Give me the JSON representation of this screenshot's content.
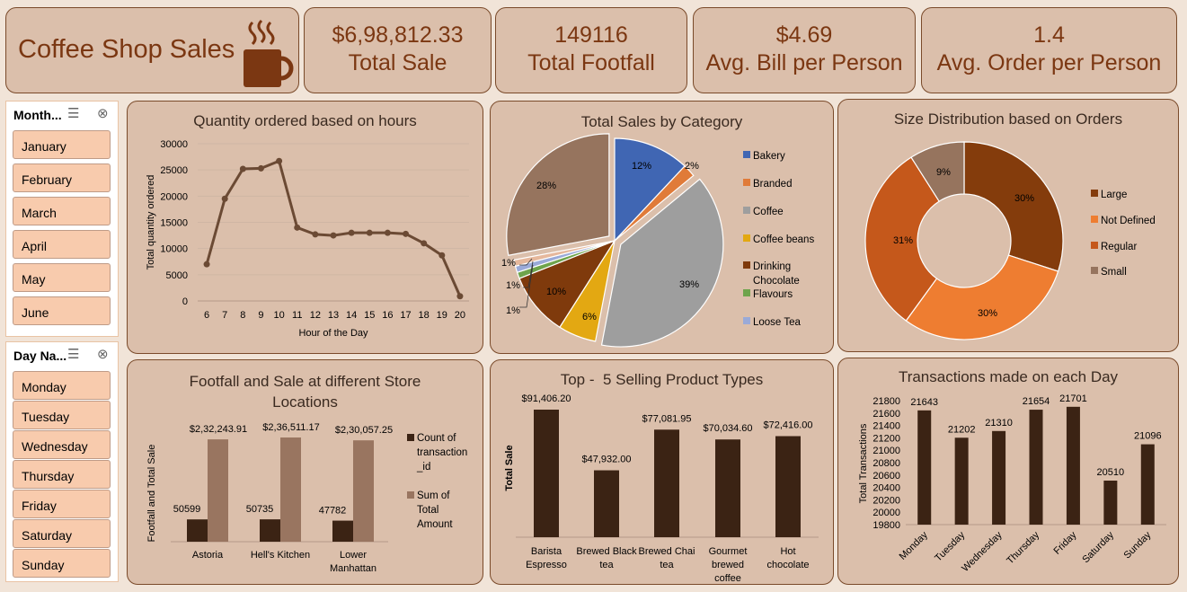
{
  "header": {
    "title": "Coffee Shop Sales",
    "icon": "coffee-cup-icon"
  },
  "kpis": [
    {
      "value": "$6,98,812.33",
      "label": "Total Sale"
    },
    {
      "value": "149116",
      "label": "Total Footfall"
    },
    {
      "value": "$4.69",
      "label": "Avg. Bill per Person"
    },
    {
      "value": "1.4",
      "label": "Avg. Order per Person"
    }
  ],
  "slicers": {
    "month": {
      "header": "Month...",
      "items": [
        "January",
        "February",
        "March",
        "April",
        "May",
        "June"
      ]
    },
    "day": {
      "header": "Day Na...",
      "items": [
        "Monday",
        "Tuesday",
        "Wednesday",
        "Thursday",
        "Friday",
        "Saturday",
        "Sunday"
      ]
    }
  },
  "colors": {
    "accent": "#7b3712",
    "card": "#dbbfab",
    "slicer_item": "#f8cbad",
    "bar_dark": "#3b2314",
    "bar_light": "#997560"
  },
  "chart_data": [
    {
      "type": "line",
      "title": "Quantity ordered based on hours",
      "xlabel": "Hour of the Day",
      "ylabel": "Total quantity ordered",
      "x": [
        6,
        7,
        8,
        9,
        10,
        11,
        12,
        13,
        14,
        15,
        16,
        17,
        18,
        19,
        20
      ],
      "values": [
        7000,
        19500,
        25200,
        25300,
        26700,
        14000,
        12700,
        12500,
        13000,
        13000,
        13000,
        12800,
        11000,
        8700,
        900
      ],
      "ylim": [
        0,
        30000
      ],
      "yticks": [
        "0",
        "5000",
        "10000",
        "15000",
        "20000",
        "25000",
        "30000"
      ],
      "grid": true
    },
    {
      "type": "pie",
      "title": "Total Sales by Category",
      "legend": "right",
      "slices": [
        {
          "label": "Bakery",
          "pct": 12,
          "text": "12%",
          "color": "#4066b3"
        },
        {
          "label": "Branded",
          "pct": 2,
          "text": "2%",
          "color": "#e07b39"
        },
        {
          "label": "Coffee",
          "pct": 39,
          "text": "39%",
          "color": "#9e9e9e"
        },
        {
          "label": "Coffee beans",
          "pct": 6,
          "text": "6%",
          "color": "#e3a812"
        },
        {
          "label": "Drinking Chocolate",
          "pct": 10,
          "text": "10%",
          "color": "#7f3a0c"
        },
        {
          "label": "Flavours",
          "pct": 1,
          "text": "1%",
          "color": "#6ea44c"
        },
        {
          "label": "Loose Tea",
          "pct": 1,
          "text": "1%",
          "color": "#9aaad8"
        },
        {
          "label": "",
          "pct": 1,
          "text": "1%",
          "color": "#e6b89c"
        },
        {
          "label": "",
          "pct": 28,
          "text": "28%",
          "color": "#96745e"
        }
      ]
    },
    {
      "type": "pie",
      "title": "Size Distribution based on Orders",
      "legend": "right",
      "slices": [
        {
          "label": "Large",
          "pct": 30,
          "text": "30%",
          "color": "#843c0c"
        },
        {
          "label": "Not Defined",
          "pct": 30,
          "text": "30%",
          "color": "#ee7d31"
        },
        {
          "label": "Regular",
          "pct": 31,
          "text": "31%",
          "color": "#c5581b"
        },
        {
          "label": "Small",
          "pct": 9,
          "text": "9%",
          "color": "#96745e"
        }
      ]
    },
    {
      "type": "bar",
      "title": "Footfall and Sale at different Store Locations",
      "ylabel": "Footfall and Total Sale",
      "categories": [
        "Astoria",
        "Hell's Kitchen",
        "Lower Manhattan"
      ],
      "series": [
        {
          "name": "Count of transaction_id",
          "values": [
            50599,
            50735,
            47782
          ],
          "labels": [
            "50599",
            "50735",
            "47782"
          ],
          "color": "#3b2314"
        },
        {
          "name": "Sum of Total Amount",
          "values": [
            232243.91,
            236511.17,
            230057.25
          ],
          "labels": [
            "$2,32,243.91",
            "$2,36,511.17",
            "$2,30,057.25"
          ],
          "color": "#997560"
        }
      ],
      "legend": "right"
    },
    {
      "type": "bar",
      "title": "Top -  5 Selling Product Types",
      "ylabel": "Total Sale",
      "categories": [
        "Barista Espresso",
        "Brewed Black tea",
        "Brewed Chai tea",
        "Gourmet brewed coffee",
        "Hot chocolate"
      ],
      "values": [
        91406.2,
        47932.0,
        77081.95,
        70034.6,
        72416.0
      ],
      "labels": [
        "$91,406.20",
        "$47,932.00",
        "$77,081.95",
        "$70,034.60",
        "$72,416.00"
      ]
    },
    {
      "type": "bar",
      "title": "Transactions made on each Day",
      "ylabel": "Total Transactions",
      "categories": [
        "Monday",
        "Tuesday",
        "Wednesday",
        "Thursday",
        "Friday",
        "Saturday",
        "Sunday"
      ],
      "values": [
        21643,
        21202,
        21310,
        21654,
        21701,
        20510,
        21096
      ],
      "ylim": [
        19800,
        21800
      ],
      "yticks": [
        "19800",
        "20000",
        "20200",
        "20400",
        "20600",
        "20800",
        "21000",
        "21200",
        "21400",
        "21600",
        "21800"
      ]
    }
  ]
}
